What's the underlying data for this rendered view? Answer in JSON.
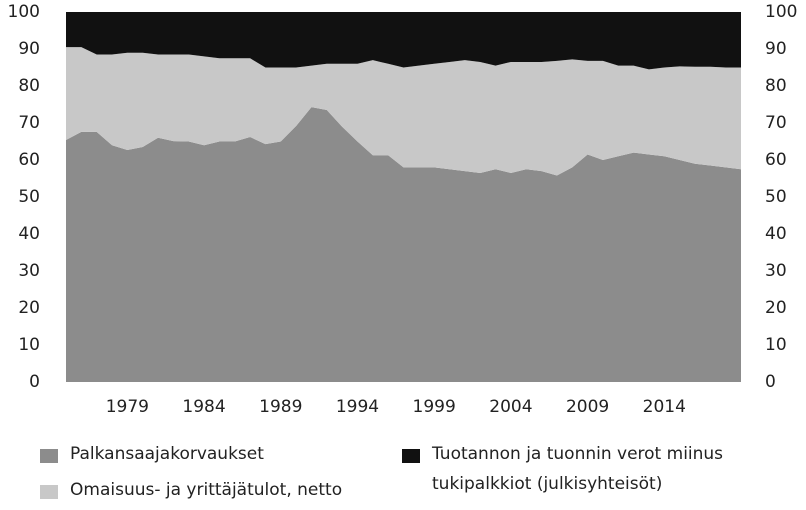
{
  "chart_data": {
    "type": "stacked_area",
    "x": [
      1975,
      1976,
      1977,
      1978,
      1979,
      1980,
      1981,
      1982,
      1983,
      1984,
      1985,
      1986,
      1987,
      1988,
      1989,
      1990,
      1991,
      1992,
      1993,
      1994,
      1995,
      1996,
      1997,
      1998,
      1999,
      2000,
      2001,
      2002,
      2003,
      2004,
      2005,
      2006,
      2007,
      2008,
      2009,
      2010,
      2011,
      2012,
      2013,
      2014,
      2015,
      2016,
      2017,
      2018,
      2019
    ],
    "xlim": [
      1975,
      2019
    ],
    "xticks": [
      1979,
      1984,
      1989,
      1994,
      1999,
      2004,
      2009,
      2014
    ],
    "ylim": [
      0,
      100
    ],
    "yticks": [
      0,
      10,
      20,
      30,
      40,
      50,
      60,
      70,
      80,
      90,
      100
    ],
    "series": [
      {
        "name": "Palkansaajakorvaukset",
        "color": "#8c8c8c",
        "values": [
          65.4,
          67.6,
          67.6,
          64,
          62.7,
          63.5,
          66,
          65.1,
          65,
          64,
          65,
          65,
          66.2,
          64.3,
          65,
          69.2,
          74.3,
          73.5,
          69,
          65,
          61.3,
          61.3,
          58,
          58,
          58,
          57.5,
          57,
          56.5,
          57.5,
          56.5,
          57.5,
          57,
          55.8,
          58,
          61.5,
          60,
          61,
          62,
          61.5,
          61,
          60,
          59,
          58.5,
          58,
          57.5
        ]
      },
      {
        "name": "Omaisuus- ja yrittäjätulot, netto",
        "color": "#c8c8c8",
        "values": [
          25.1,
          22.9,
          20.9,
          24.5,
          26.3,
          25.5,
          22.5,
          23.4,
          23.5,
          24,
          22.5,
          22.5,
          21.3,
          20.7,
          20,
          15.8,
          11.2,
          12.5,
          17,
          21,
          25.7,
          24.7,
          27,
          27.5,
          28,
          29,
          30,
          30,
          28,
          30,
          29,
          29.5,
          31,
          29.2,
          25.3,
          26.8,
          24.5,
          23.5,
          23,
          24,
          25.3,
          26.2,
          26.7,
          27,
          27.5
        ]
      },
      {
        "name": "Tuotannon ja tuonnin verot miinus tukipalkkiot (julkisyhteisöt)",
        "color": "#111111",
        "values": [
          9.5,
          9.5,
          11.5,
          11.5,
          11,
          11,
          11.5,
          11.5,
          11.5,
          12,
          12.5,
          12.5,
          12.5,
          15,
          15,
          15,
          14.5,
          14,
          14,
          14,
          13,
          14,
          15,
          14.5,
          14,
          13.5,
          13,
          13.5,
          14.5,
          13.5,
          13.5,
          13.5,
          13.2,
          12.8,
          13.2,
          13.2,
          14.5,
          14.5,
          15.5,
          15,
          14.7,
          14.8,
          14.8,
          15,
          15
        ]
      }
    ]
  }
}
